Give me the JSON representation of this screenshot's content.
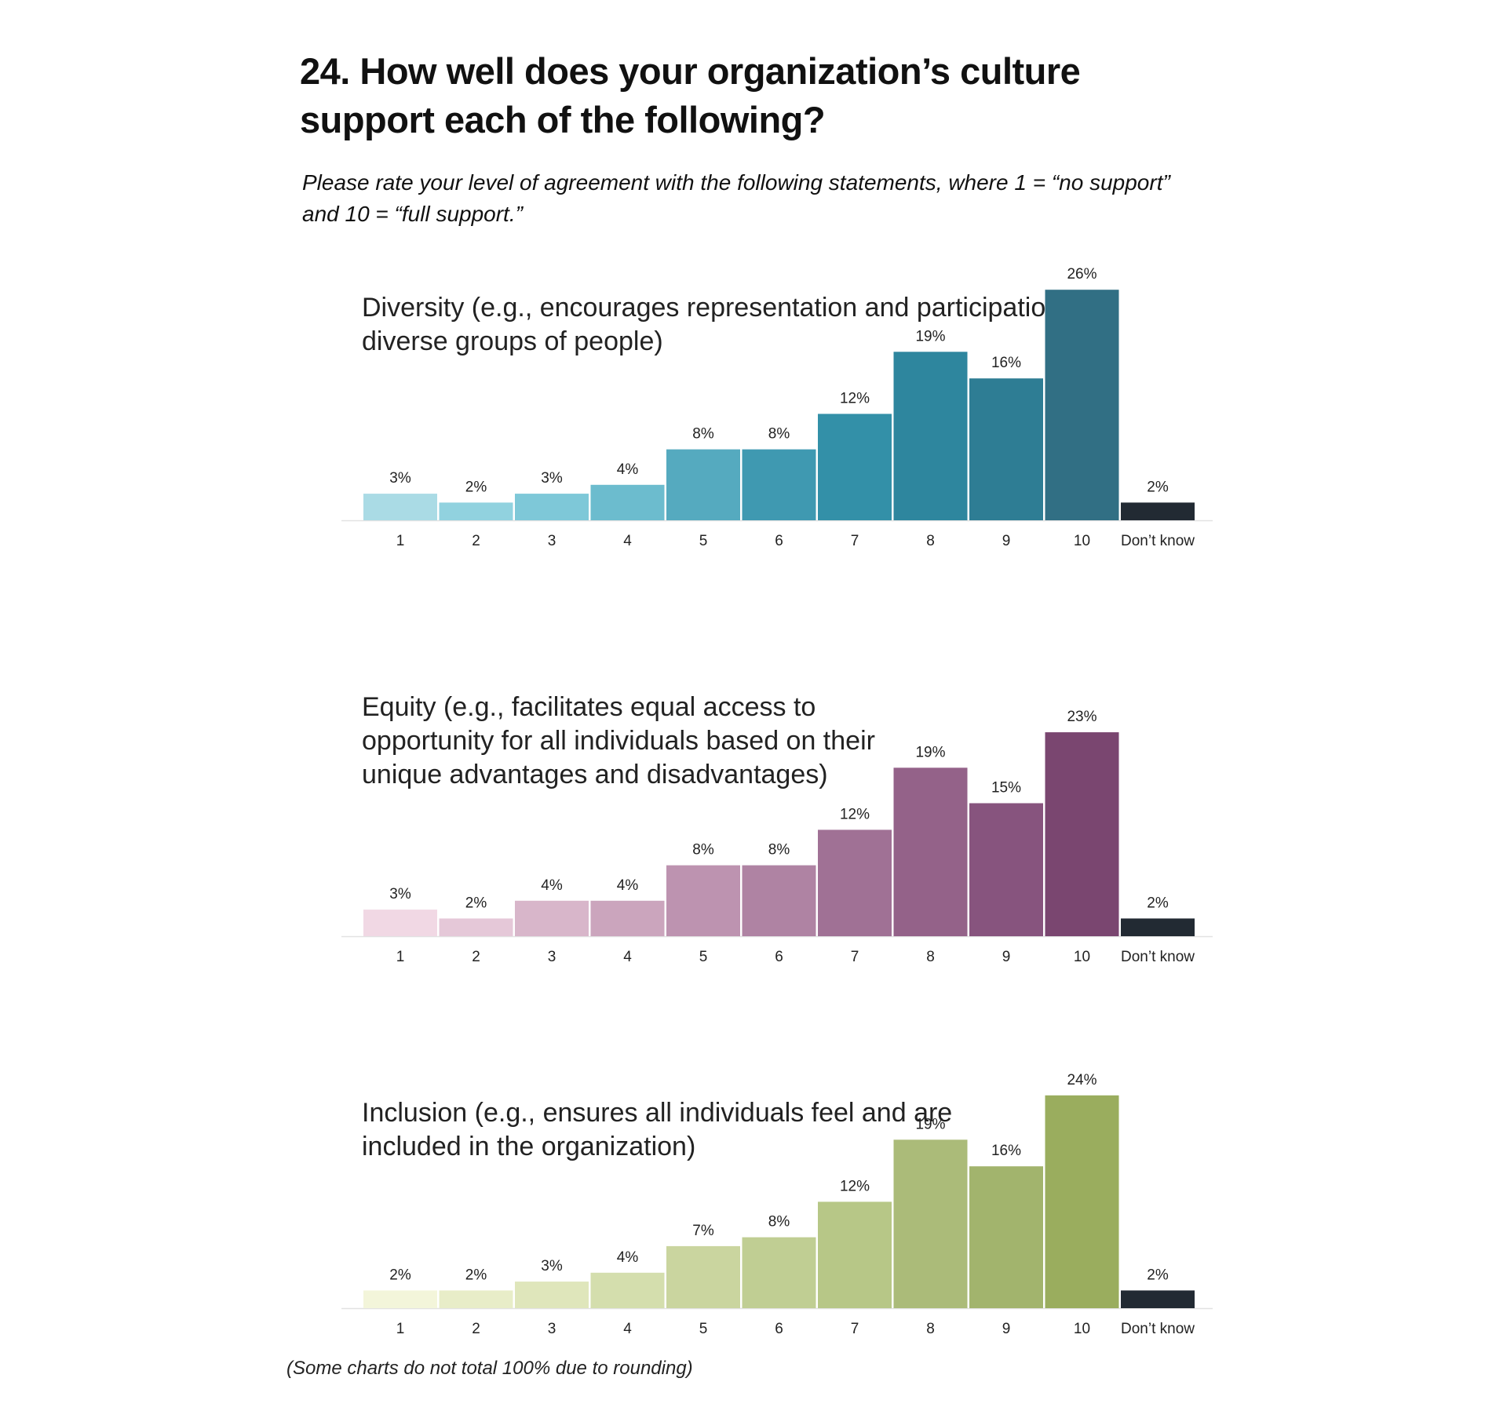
{
  "title": "24. How well does your organization’s culture support each of the following?",
  "subtitle": "Please rate your level of agreement with the following statements, where 1 = “no support” and 10 = “full support.”",
  "footnote": "(Some charts do not total 100% due to rounding)",
  "chart_data": [
    {
      "type": "bar",
      "title": "Diversity (e.g., encourages representation and participation of diverse groups of people)",
      "categories": [
        "1",
        "2",
        "3",
        "4",
        "5",
        "6",
        "7",
        "8",
        "9",
        "10",
        "Don’t know"
      ],
      "values": [
        3,
        2,
        3,
        4,
        8,
        8,
        12,
        19,
        16,
        26,
        2
      ],
      "labels": [
        "3%",
        "2%",
        "3%",
        "4%",
        "8%",
        "8%",
        "12%",
        "19%",
        "16%",
        "26%",
        "2%"
      ],
      "colors": [
        "#aadbe5",
        "#91d2df",
        "#7ec8d8",
        "#6cbcce",
        "#55aabf",
        "#3f99b1",
        "#3390a8",
        "#2e869e",
        "#2e7d94",
        "#316f84",
        "#222a33"
      ]
    },
    {
      "type": "bar",
      "title": "Equity (e.g., facilitates equal access to opportunity for all individuals based on their unique advantages and disadvantages)",
      "categories": [
        "1",
        "2",
        "3",
        "4",
        "5",
        "6",
        "7",
        "8",
        "9",
        "10",
        "Don’t know"
      ],
      "values": [
        3,
        2,
        4,
        4,
        8,
        8,
        12,
        19,
        15,
        23,
        2
      ],
      "labels": [
        "3%",
        "2%",
        "4%",
        "4%",
        "8%",
        "8%",
        "12%",
        "19%",
        "15%",
        "23%",
        "2%"
      ],
      "colors": [
        "#f1d8e4",
        "#e5c8d8",
        "#d8b6ca",
        "#cba5bd",
        "#bd93b0",
        "#af83a3",
        "#a07195",
        "#946289",
        "#87547e",
        "#7a4670",
        "#222a33"
      ]
    },
    {
      "type": "bar",
      "title": "Inclusion (e.g., ensures all individuals feel and are included in the organization)",
      "categories": [
        "1",
        "2",
        "3",
        "4",
        "5",
        "6",
        "7",
        "8",
        "9",
        "10",
        "Don’t know"
      ],
      "values": [
        2,
        2,
        3,
        4,
        7,
        8,
        12,
        19,
        16,
        24,
        2
      ],
      "labels": [
        "2%",
        "2%",
        "3%",
        "4%",
        "7%",
        "8%",
        "12%",
        "19%",
        "16%",
        "24%",
        "2%"
      ],
      "colors": [
        "#f3f5da",
        "#e8edc8",
        "#dfe6bb",
        "#d4dead",
        "#cad59f",
        "#c0ce93",
        "#b7c787",
        "#abbb79",
        "#a2b46d",
        "#9aad5e",
        "#222a33"
      ]
    }
  ]
}
